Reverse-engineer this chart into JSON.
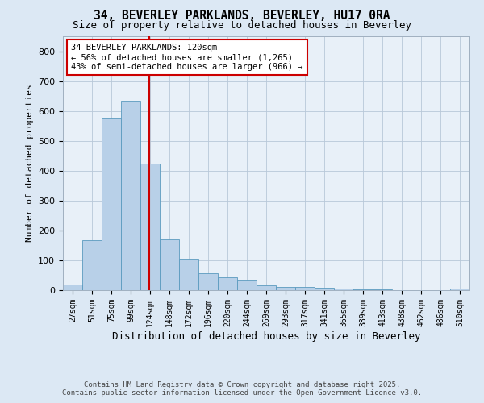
{
  "title1": "34, BEVERLEY PARKLANDS, BEVERLEY, HU17 0RA",
  "title2": "Size of property relative to detached houses in Beverley",
  "xlabel": "Distribution of detached houses by size in Beverley",
  "ylabel": "Number of detached properties",
  "bin_labels": [
    "27sqm",
    "51sqm",
    "75sqm",
    "99sqm",
    "124sqm",
    "148sqm",
    "172sqm",
    "196sqm",
    "220sqm",
    "244sqm",
    "269sqm",
    "293sqm",
    "317sqm",
    "341sqm",
    "365sqm",
    "389sqm",
    "413sqm",
    "438sqm",
    "462sqm",
    "486sqm",
    "510sqm"
  ],
  "bar_values": [
    20,
    168,
    575,
    635,
    425,
    170,
    105,
    57,
    42,
    32,
    15,
    10,
    10,
    8,
    6,
    4,
    2,
    1,
    1,
    0,
    6
  ],
  "bar_color": "#b8d0e8",
  "bar_edge_color": "#5a9abf",
  "vline_x": 4,
  "vline_color": "#cc0000",
  "annotation_text": "34 BEVERLEY PARKLANDS: 120sqm\n← 56% of detached houses are smaller (1,265)\n43% of semi-detached houses are larger (966) →",
  "annotation_box_color": "#ffffff",
  "annotation_box_edge": "#cc0000",
  "ylim": [
    0,
    850
  ],
  "yticks": [
    0,
    100,
    200,
    300,
    400,
    500,
    600,
    700,
    800
  ],
  "footer1": "Contains HM Land Registry data © Crown copyright and database right 2025.",
  "footer2": "Contains public sector information licensed under the Open Government Licence v3.0.",
  "bg_color": "#dce8f4",
  "plot_bg_color": "#e8f0f8"
}
